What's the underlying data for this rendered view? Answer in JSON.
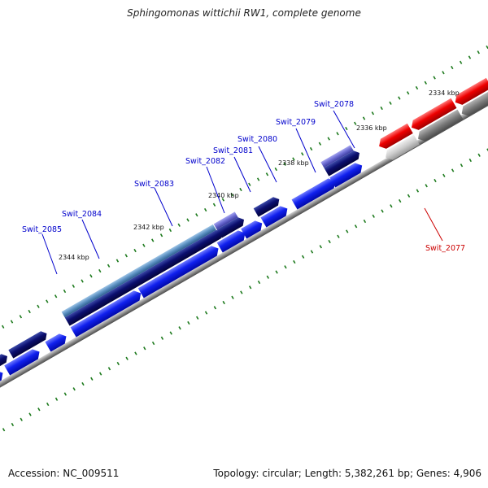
{
  "title": "Sphingomonas wittichii RW1, complete genome",
  "footer": {
    "accession": "Accession: NC_009511",
    "summary": "Topology: circular; Length: 5,382,261 bp; Genes: 4,906"
  },
  "scale_labels": [
    "2334 kbp",
    "2336 kbp",
    "2338 kbp",
    "2340 kbp",
    "2342 kbp",
    "2344 kbp"
  ],
  "gene_labels": [
    {
      "text": "Swit_2078",
      "color": "#0000cc"
    },
    {
      "text": "Swit_2079",
      "color": "#0000cc"
    },
    {
      "text": "Swit_2080",
      "color": "#0000cc"
    },
    {
      "text": "Swit_2081",
      "color": "#0000cc"
    },
    {
      "text": "Swit_2082",
      "color": "#0000cc"
    },
    {
      "text": "Swit_2083",
      "color": "#0000cc"
    },
    {
      "text": "Swit_2084",
      "color": "#0000cc"
    },
    {
      "text": "Swit_2085",
      "color": "#0000cc"
    },
    {
      "text": "Swit_2077",
      "color": "#cc0000"
    }
  ],
  "colors": {
    "forward_gene": "#0a14e6",
    "reverse_gene": "#e00000",
    "dark_feature": "#06065e",
    "light_feature": "#5a8fc0",
    "lavender_feature": "#6a6ad0",
    "gray_feature": "#8a8a8a",
    "light_gray_feature": "#c8c8c8",
    "backbone": "#8c8c8c",
    "tick": "#1d7a1d"
  }
}
